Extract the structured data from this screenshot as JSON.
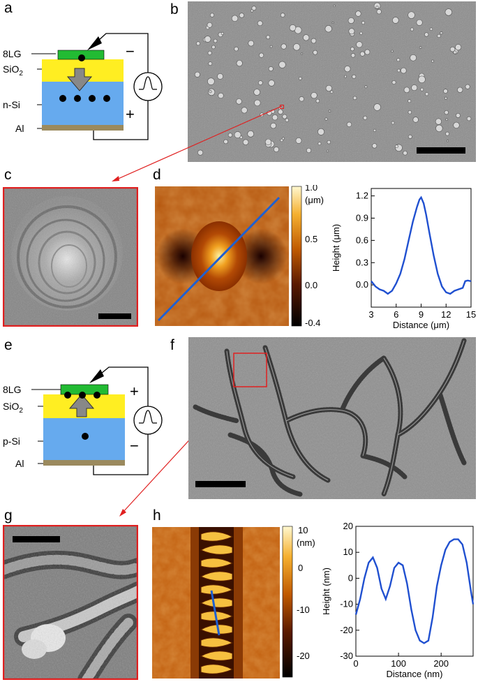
{
  "panel_labels": {
    "a": "a",
    "b": "b",
    "c": "c",
    "d": "d",
    "e": "e",
    "f": "f",
    "g": "g",
    "h": "h"
  },
  "schematic_top": {
    "layers": [
      "8LG",
      "SiO",
      "n-Si",
      "Al"
    ],
    "sub": "2",
    "sign_top": "−",
    "sign_bottom": "+"
  },
  "schematic_bottom": {
    "layers": [
      "8LG",
      "SiO",
      "p-Si",
      "Al"
    ],
    "sub": "2",
    "sign_top": "+",
    "sign_bottom": "−"
  },
  "colorbar_d": {
    "ticks": [
      "1.0",
      "0.5",
      "0.0",
      "-0.4"
    ],
    "unit": "(μm)"
  },
  "colorbar_h": {
    "ticks": [
      "10",
      "0",
      "-10",
      "-20"
    ],
    "unit": "(nm)"
  },
  "chart_data": [
    {
      "type": "line",
      "xlabel": "Distance (μm)",
      "ylabel": "Height (μm)",
      "xlim": [
        3,
        15
      ],
      "ylim": [
        -0.3,
        1.3
      ],
      "xticks": [
        3,
        6,
        9,
        12,
        15
      ],
      "yticks": [
        0.0,
        0.3,
        0.6,
        0.9,
        1.2
      ],
      "ytick_labels": [
        "0.0",
        "0.3",
        "0.6",
        "0.9",
        "1.2"
      ],
      "x": [
        3,
        3.5,
        4,
        4.5,
        5,
        5.5,
        6,
        6.5,
        7,
        7.5,
        8,
        8.5,
        8.8,
        9,
        9.3,
        9.6,
        10,
        10.5,
        11,
        11.5,
        12,
        12.5,
        13,
        13.5,
        14,
        14.3,
        14.6,
        15
      ],
      "y": [
        0.05,
        -0.02,
        -0.06,
        -0.08,
        -0.12,
        -0.08,
        0.02,
        0.15,
        0.35,
        0.6,
        0.85,
        1.05,
        1.15,
        1.18,
        1.1,
        0.95,
        0.7,
        0.4,
        0.15,
        -0.02,
        -0.1,
        -0.12,
        -0.08,
        -0.06,
        -0.04,
        0.05,
        0.06,
        0.05
      ]
    },
    {
      "type": "line",
      "xlabel": "Distance (nm)",
      "ylabel": "Height (nm)",
      "xlim": [
        0,
        275
      ],
      "ylim": [
        -30,
        20
      ],
      "xticks": [
        0,
        100,
        200
      ],
      "yticks": [
        -30,
        -20,
        -10,
        0,
        10,
        20
      ],
      "ytick_labels": [
        "-30",
        "-20",
        "-10",
        "0",
        "10",
        "20"
      ],
      "x": [
        0,
        10,
        20,
        30,
        40,
        50,
        60,
        70,
        80,
        90,
        100,
        110,
        120,
        130,
        140,
        150,
        160,
        170,
        180,
        190,
        200,
        210,
        220,
        230,
        240,
        250,
        260,
        270,
        275
      ],
      "y": [
        -14,
        -8,
        0,
        6,
        8,
        4,
        -4,
        -8,
        -3,
        4,
        6,
        5,
        -2,
        -12,
        -20,
        -24,
        -25,
        -24,
        -15,
        -3,
        5,
        11,
        14,
        15,
        15,
        13,
        6,
        -5,
        -10
      ]
    }
  ]
}
